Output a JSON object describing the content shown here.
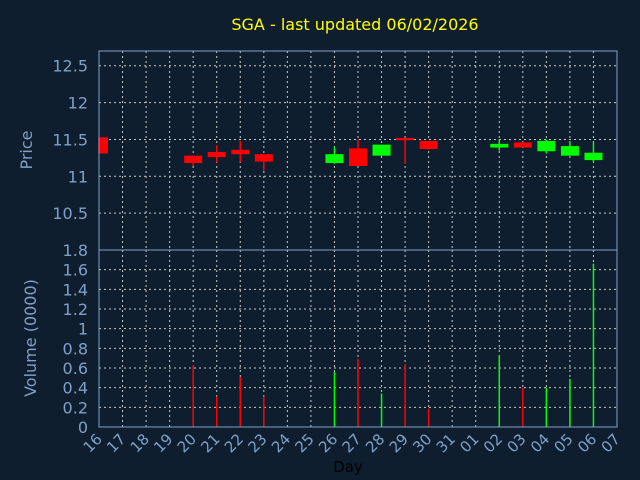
{
  "chart_data": {
    "type": "candlestick",
    "title": "SGA - last updated 06/02/2026",
    "xlabel": "Day",
    "ylabel": "Price",
    "ylabel_volume": "Volume (0000)",
    "ylim": [
      10.0,
      12.7
    ],
    "ylim_volume": [
      0,
      1.8
    ],
    "yticks": [
      "10.5",
      "11",
      "11.5",
      "12",
      "12.5"
    ],
    "yticks_volume": [
      "0",
      "0.2",
      "0.4",
      "0.6",
      "0.8",
      "1",
      "1.2",
      "1.4",
      "1.6",
      "1.8"
    ],
    "x_labels": [
      "16",
      "17",
      "18",
      "19",
      "20",
      "21",
      "22",
      "23",
      "24",
      "25",
      "26",
      "27",
      "28",
      "29",
      "30",
      "31",
      "01",
      "02",
      "03",
      "04",
      "05",
      "06",
      "07"
    ],
    "candles": [
      {
        "day": "16",
        "open": 11.53,
        "high": 11.53,
        "low": 11.31,
        "close": 11.31,
        "volume": 0
      },
      {
        "day": "20",
        "open": 11.28,
        "high": 11.28,
        "low": 11.14,
        "close": 11.18,
        "volume": 0.63
      },
      {
        "day": "21",
        "open": 11.33,
        "high": 11.42,
        "low": 11.19,
        "close": 11.26,
        "volume": 0.31
      },
      {
        "day": "22",
        "open": 11.36,
        "high": 11.48,
        "low": 11.19,
        "close": 11.3,
        "volume": 0.51
      },
      {
        "day": "23",
        "open": 11.3,
        "high": 11.3,
        "low": 11.08,
        "close": 11.2,
        "volume": 0.31
      },
      {
        "day": "26",
        "open": 11.18,
        "high": 11.4,
        "low": 11.17,
        "close": 11.3,
        "volume": 0.56
      },
      {
        "day": "27",
        "open": 11.38,
        "high": 11.5,
        "low": 11.14,
        "close": 11.14,
        "volume": 0.69
      },
      {
        "day": "28",
        "open": 11.28,
        "high": 11.43,
        "low": 11.28,
        "close": 11.43,
        "volume": 0.34
      },
      {
        "day": "29",
        "open": 11.52,
        "high": 11.52,
        "low": 11.17,
        "close": 11.49,
        "volume": 0.64
      },
      {
        "day": "30",
        "open": 11.48,
        "high": 11.48,
        "low": 11.36,
        "close": 11.37,
        "volume": 0.19
      },
      {
        "day": "02",
        "open": 11.39,
        "high": 11.5,
        "low": 11.35,
        "close": 11.44,
        "volume": 0.73
      },
      {
        "day": "03",
        "open": 11.46,
        "high": 11.46,
        "low": 11.39,
        "close": 11.39,
        "volume": 0.4
      },
      {
        "day": "04",
        "open": 11.34,
        "high": 11.5,
        "low": 11.31,
        "close": 11.48,
        "volume": 0.4
      },
      {
        "day": "05",
        "open": 11.28,
        "high": 11.46,
        "low": 11.28,
        "close": 11.41,
        "volume": 0.49
      },
      {
        "day": "06",
        "open": 11.22,
        "high": 11.46,
        "low": 11.19,
        "close": 11.32,
        "volume": 1.66
      }
    ],
    "colors": {
      "up": "#00ff00",
      "down": "#ff0000",
      "title": "#ffff00",
      "axis": "#7fa0c8",
      "grid": "#c8c8c8",
      "background": "#0f1e2e"
    }
  }
}
